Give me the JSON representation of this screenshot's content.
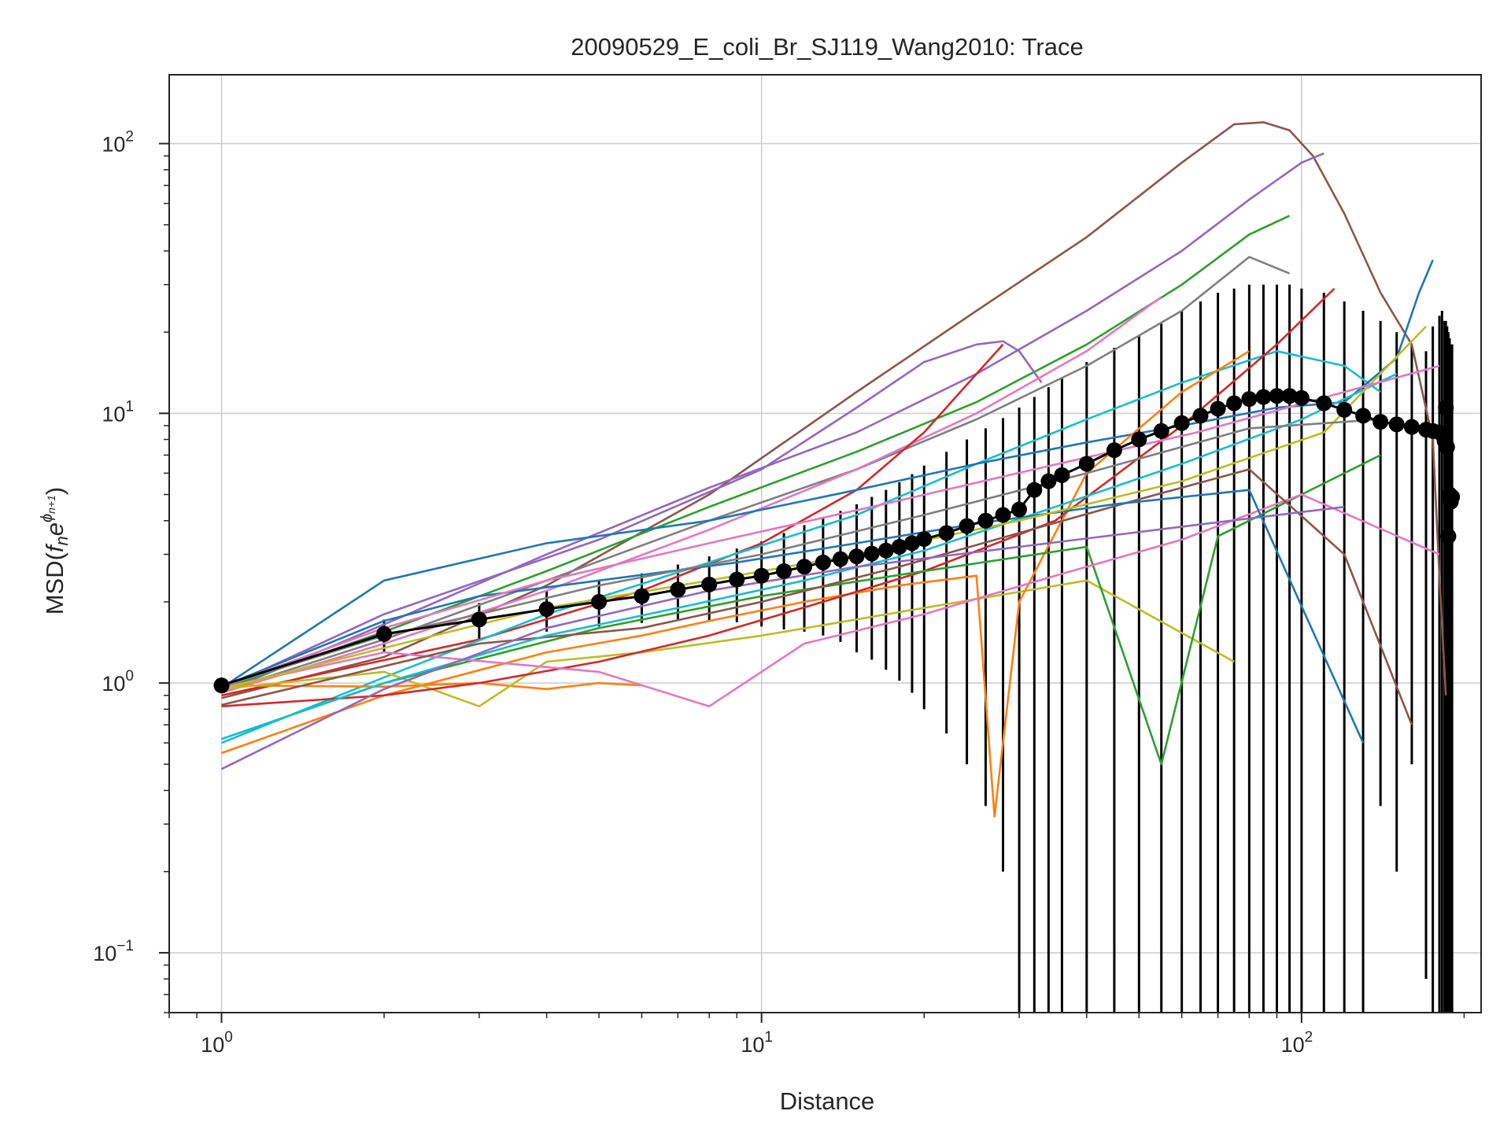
{
  "chart_data": {
    "type": "line",
    "title": "20090529_E_coli_Br_SJ119_Wang2010: Trace",
    "xlabel": "Distance",
    "ylabel": "MSD(f_n e^{φ_{n+1}})",
    "xscale": "log",
    "yscale": "log",
    "xlim": [
      0.8,
      215
    ],
    "ylim": [
      0.06,
      180
    ],
    "grid": true,
    "x_ticks": [
      {
        "value": 1,
        "base": "10",
        "exp": "0"
      },
      {
        "value": 10,
        "base": "10",
        "exp": "1"
      },
      {
        "value": 100,
        "base": "10",
        "exp": "2"
      }
    ],
    "y_ticks": [
      {
        "value": 0.1,
        "base": "10",
        "exp": "−1"
      },
      {
        "value": 1,
        "base": "10",
        "exp": "0"
      },
      {
        "value": 10,
        "base": "10",
        "exp": "1"
      },
      {
        "value": 100,
        "base": "10",
        "exp": "2"
      }
    ],
    "mean_series": {
      "color": "#000000",
      "x": [
        1,
        2,
        3,
        4,
        5,
        6,
        7,
        8,
        9,
        10,
        11,
        12,
        13,
        14,
        15,
        16,
        17,
        18,
        19,
        20,
        22,
        24,
        26,
        28,
        30,
        32,
        34,
        36,
        40,
        45,
        50,
        55,
        60,
        65,
        70,
        75,
        80,
        85,
        90,
        95,
        100,
        110,
        120,
        130,
        140,
        150,
        160,
        170,
        175,
        180,
        182,
        184,
        185,
        186,
        187,
        188,
        189,
        190
      ],
      "y": [
        0.98,
        1.52,
        1.72,
        1.88,
        2.0,
        2.1,
        2.22,
        2.32,
        2.42,
        2.5,
        2.6,
        2.7,
        2.8,
        2.88,
        2.95,
        3.02,
        3.1,
        3.2,
        3.3,
        3.42,
        3.6,
        3.82,
        4.0,
        4.2,
        4.4,
        5.2,
        5.6,
        5.9,
        6.5,
        7.3,
        8.0,
        8.6,
        9.2,
        9.8,
        10.4,
        10.9,
        11.3,
        11.5,
        11.6,
        11.6,
        11.4,
        10.9,
        10.3,
        9.8,
        9.3,
        9.1,
        8.9,
        8.7,
        8.6,
        8.5,
        8.4,
        7.9,
        10.5,
        7.5,
        3.5,
        5.0,
        4.7,
        4.9
      ],
      "err_low": [
        0.98,
        1.3,
        1.45,
        1.55,
        1.62,
        1.67,
        1.7,
        1.7,
        1.68,
        1.62,
        1.58,
        1.55,
        1.5,
        1.42,
        1.3,
        1.22,
        1.12,
        1.02,
        0.92,
        0.8,
        0.65,
        0.5,
        0.35,
        0.2,
        0.06,
        0.06,
        0.06,
        0.06,
        0.06,
        0.06,
        0.06,
        0.06,
        0.06,
        0.06,
        0.06,
        0.06,
        0.06,
        0.06,
        0.06,
        0.06,
        0.06,
        0.06,
        0.06,
        0.06,
        0.35,
        0.2,
        0.5,
        0.08,
        0.06,
        0.06,
        0.06,
        0.06,
        0.06,
        0.06,
        0.06,
        0.06,
        0.06,
        0.06
      ],
      "err_high": [
        0.98,
        1.72,
        1.98,
        2.2,
        2.38,
        2.55,
        2.75,
        2.95,
        3.15,
        3.35,
        3.6,
        3.85,
        4.1,
        4.35,
        4.6,
        4.9,
        5.2,
        5.55,
        5.95,
        6.4,
        7.2,
        8.0,
        8.8,
        9.6,
        10.5,
        11.5,
        12.5,
        13.5,
        15.5,
        17.5,
        19.5,
        21.5,
        24,
        26,
        28,
        29,
        30,
        30,
        30,
        30,
        29,
        28,
        26,
        24,
        22,
        20,
        18,
        17,
        21,
        23,
        24,
        22,
        22,
        21,
        20,
        19,
        18,
        18
      ]
    },
    "traces": [
      {
        "color": "#8c564b",
        "x": [
          1,
          2,
          4,
          8,
          15,
          25,
          40,
          60,
          75,
          85,
          95,
          105,
          120,
          140,
          160,
          175,
          180,
          185
        ],
        "y": [
          0.88,
          1.25,
          2.3,
          5.0,
          12,
          24,
          45,
          85,
          118,
          120,
          112,
          90,
          55,
          28,
          18,
          8,
          2.5,
          0.9
        ]
      },
      {
        "color": "#9467bd",
        "x": [
          1,
          2,
          4,
          8,
          15,
          25,
          40,
          60,
          80,
          100,
          110
        ],
        "y": [
          0.92,
          1.65,
          3.0,
          5.3,
          8.5,
          14,
          24,
          40,
          62,
          85,
          92
        ]
      },
      {
        "color": "#2ca02c",
        "x": [
          1,
          2,
          4,
          8,
          15,
          25,
          40,
          60,
          80,
          95
        ],
        "y": [
          0.95,
          1.55,
          2.6,
          4.5,
          7.2,
          11,
          18,
          30,
          46,
          54
        ]
      },
      {
        "color": "#7f7f7f",
        "x": [
          1,
          2,
          4,
          8,
          15,
          25,
          40,
          60,
          80,
          95
        ],
        "y": [
          0.93,
          1.45,
          2.4,
          4.0,
          6.2,
          9.5,
          15,
          24,
          38,
          33
        ]
      },
      {
        "color": "#9467bd",
        "x": [
          1,
          2,
          5,
          10,
          15,
          20,
          25,
          28,
          30,
          33
        ],
        "y": [
          0.95,
          1.8,
          3.4,
          6.2,
          10.5,
          15.5,
          18,
          18.5,
          17,
          13
        ]
      },
      {
        "color": "#e377c2",
        "x": [
          1,
          2,
          4,
          8,
          15,
          25,
          40,
          55
        ],
        "y": [
          0.92,
          1.4,
          2.2,
          3.7,
          6.2,
          10,
          17,
          27
        ]
      },
      {
        "color": "#d62728",
        "x": [
          1,
          3,
          6,
          10,
          15,
          20,
          25,
          28
        ],
        "y": [
          0.9,
          1.45,
          2.2,
          3.3,
          5.2,
          8.5,
          14,
          18
        ]
      },
      {
        "color": "#17becf",
        "x": [
          1,
          2,
          4,
          8,
          15,
          25,
          40,
          60,
          90,
          120,
          140
        ],
        "y": [
          0.6,
          1.05,
          1.8,
          2.8,
          4.2,
          6.5,
          9.5,
          13,
          17,
          15,
          12
        ]
      },
      {
        "color": "#ff7f0e",
        "x": [
          1,
          2,
          3,
          4,
          5,
          6
        ],
        "y": [
          0.98,
          0.97,
          1.0,
          0.95,
          1.0,
          0.98
        ]
      },
      {
        "color": "#1f77b4",
        "x": [
          1,
          2,
          4,
          8,
          15,
          25,
          40,
          60,
          90,
          120,
          150,
          165,
          175
        ],
        "y": [
          0.96,
          2.4,
          3.3,
          4.0,
          5.2,
          6.5,
          7.8,
          9.0,
          10.5,
          11,
          16,
          28,
          37
        ]
      },
      {
        "color": "#bcbd22",
        "x": [
          1,
          2,
          3,
          4,
          6,
          10,
          20,
          40,
          75
        ],
        "y": [
          0.95,
          1.1,
          0.82,
          1.2,
          1.3,
          1.5,
          1.9,
          2.4,
          1.2
        ]
      },
      {
        "color": "#ff7f0e",
        "x": [
          1,
          2,
          4,
          6,
          8,
          12,
          18,
          25,
          27,
          30,
          40,
          60,
          80
        ],
        "y": [
          0.55,
          0.9,
          1.3,
          1.5,
          1.7,
          2.0,
          2.3,
          2.5,
          0.32,
          2.0,
          6.0,
          12,
          17
        ]
      },
      {
        "color": "#d62728",
        "x": [
          1,
          2,
          3,
          5,
          8,
          13,
          20,
          35,
          60,
          90,
          115
        ],
        "y": [
          0.82,
          0.9,
          1.0,
          1.2,
          1.5,
          2.0,
          2.6,
          4.0,
          9.0,
          18,
          29
        ]
      },
      {
        "color": "#2ca02c",
        "x": [
          1,
          2,
          5,
          10,
          20,
          40,
          55,
          70,
          100,
          140
        ],
        "y": [
          0.62,
          1.0,
          1.6,
          2.1,
          2.6,
          3.2,
          0.5,
          3.5,
          5.0,
          7.0
        ]
      },
      {
        "color": "#e377c2",
        "x": [
          1,
          2,
          5,
          8,
          12,
          20,
          35,
          60,
          100,
          180
        ],
        "y": [
          0.96,
          1.3,
          1.1,
          0.82,
          1.4,
          1.8,
          2.5,
          3.4,
          5.0,
          3.0
        ]
      },
      {
        "color": "#8c564b",
        "x": [
          1,
          3,
          6,
          10,
          18,
          30,
          50,
          80,
          120,
          160
        ],
        "y": [
          0.83,
          1.4,
          1.6,
          2.0,
          2.7,
          3.6,
          4.8,
          6.2,
          3.0,
          0.7
        ]
      },
      {
        "color": "#17becf",
        "x": [
          1,
          2,
          4,
          7,
          12,
          20,
          35,
          60,
          100,
          150
        ],
        "y": [
          0.62,
          1.0,
          1.5,
          1.9,
          2.4,
          3.1,
          4.5,
          6.5,
          9.5,
          14
        ]
      },
      {
        "color": "#9467bd",
        "x": [
          1,
          2,
          4,
          8,
          15,
          30,
          60,
          120
        ],
        "y": [
          0.48,
          0.95,
          1.6,
          2.2,
          2.7,
          3.2,
          3.8,
          4.5
        ]
      },
      {
        "color": "#1f77b4",
        "x": [
          1,
          2,
          3,
          5,
          9,
          15,
          25,
          45,
          80,
          130
        ],
        "y": [
          0.97,
          1.7,
          2.1,
          2.4,
          2.8,
          3.3,
          3.9,
          4.6,
          5.2,
          0.6
        ]
      },
      {
        "color": "#bcbd22",
        "x": [
          1,
          2,
          4,
          8,
          15,
          30,
          60,
          110,
          170
        ],
        "y": [
          0.95,
          1.35,
          1.9,
          2.4,
          3.0,
          4.0,
          5.6,
          8.5,
          21
        ]
      },
      {
        "color": "#7f7f7f",
        "x": [
          1,
          2,
          3,
          5,
          10,
          20,
          40,
          80,
          140
        ],
        "y": [
          0.97,
          1.5,
          1.8,
          2.3,
          3.0,
          4.2,
          6.0,
          8.8,
          9.5
        ]
      },
      {
        "color": "#e377c2",
        "x": [
          1,
          2,
          4,
          8,
          16,
          32,
          64,
          120,
          180
        ],
        "y": [
          0.97,
          1.6,
          2.4,
          3.3,
          4.5,
          6.2,
          8.5,
          12,
          15
        ]
      }
    ]
  }
}
